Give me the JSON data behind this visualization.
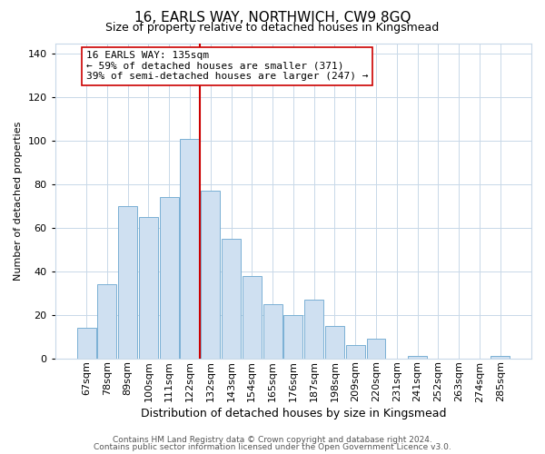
{
  "title": "16, EARLS WAY, NORTHWICH, CW9 8GQ",
  "subtitle": "Size of property relative to detached houses in Kingsmead",
  "xlabel": "Distribution of detached houses by size in Kingsmead",
  "ylabel": "Number of detached properties",
  "bar_labels": [
    "67sqm",
    "78sqm",
    "89sqm",
    "100sqm",
    "111sqm",
    "122sqm",
    "132sqm",
    "143sqm",
    "154sqm",
    "165sqm",
    "176sqm",
    "187sqm",
    "198sqm",
    "209sqm",
    "220sqm",
    "231sqm",
    "241sqm",
    "252sqm",
    "263sqm",
    "274sqm",
    "285sqm"
  ],
  "bar_values": [
    14,
    34,
    70,
    65,
    74,
    101,
    77,
    55,
    38,
    25,
    20,
    27,
    15,
    6,
    9,
    0,
    1,
    0,
    0,
    0,
    1
  ],
  "bar_color": "#cfe0f1",
  "bar_edge_color": "#7ab0d4",
  "vline_color": "#cc0000",
  "annotation_lines": [
    "16 EARLS WAY: 135sqm",
    "← 59% of detached houses are smaller (371)",
    "39% of semi-detached houses are larger (247) →"
  ],
  "ylim": [
    0,
    145
  ],
  "yticks": [
    0,
    20,
    40,
    60,
    80,
    100,
    120,
    140
  ],
  "footer_line1": "Contains HM Land Registry data © Crown copyright and database right 2024.",
  "footer_line2": "Contains public sector information licensed under the Open Government Licence v3.0.",
  "background_color": "#ffffff",
  "grid_color": "#c8d8e8",
  "title_fontsize": 11,
  "subtitle_fontsize": 9,
  "xlabel_fontsize": 9,
  "ylabel_fontsize": 8,
  "tick_fontsize": 8,
  "ann_fontsize": 8,
  "footer_fontsize": 6.5
}
